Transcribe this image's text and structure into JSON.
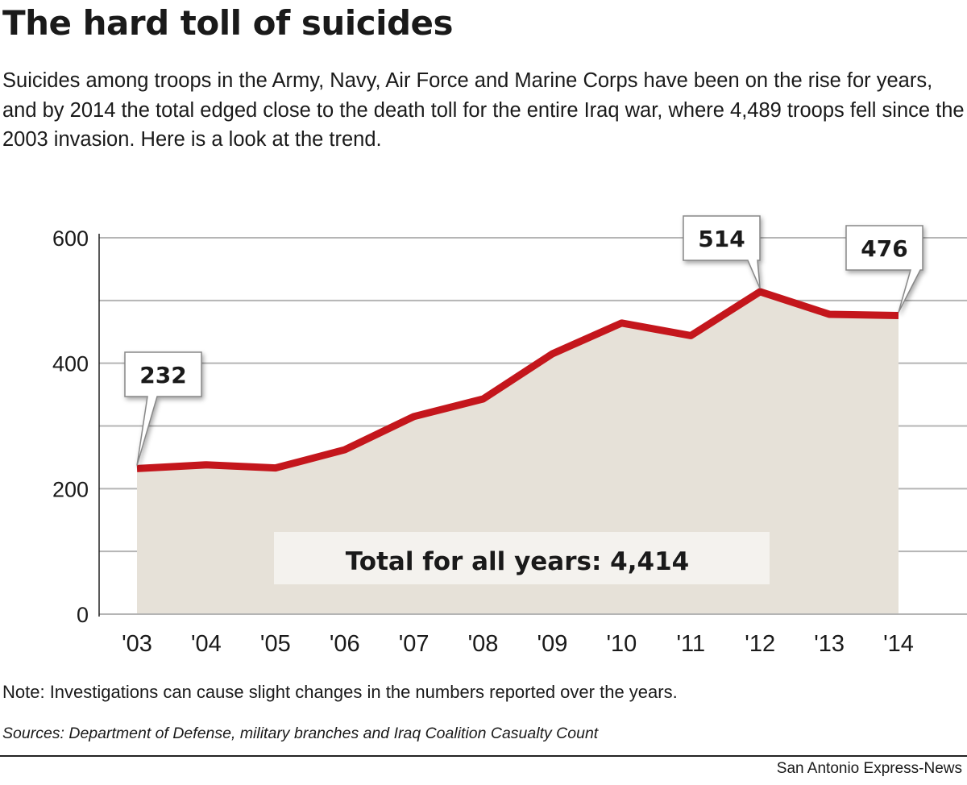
{
  "title": "The hard toll of suicides",
  "subtitle": "Suicides among troops in the Army, Navy, Air Force and Marine Corps have been on the rise for years, and by 2014 the total edged close to the death toll for the entire Iraq war, where 4,489 troops fell since the 2003 invasion. Here is a look at the trend.",
  "note": "Note: Investigations can cause slight changes in the numbers reported over the years.",
  "sources": "Sources: Department of Defense, military branches and Iraq Coalition Casualty Count",
  "credit": "San Antonio Express-News",
  "chart_data": {
    "type": "area",
    "categories": [
      "'03",
      "'04",
      "'05",
      "'06",
      "'07",
      "'08",
      "'09",
      "'10",
      "'11",
      "'12",
      "'13",
      "'14"
    ],
    "values": [
      232,
      238,
      233,
      262,
      315,
      343,
      415,
      464,
      444,
      514,
      478,
      476
    ],
    "yticks": [
      0,
      200,
      400,
      600
    ],
    "ylim": [
      0,
      600
    ],
    "grid": true,
    "callouts": [
      {
        "index": 0,
        "label": "232"
      },
      {
        "index": 9,
        "label": "514"
      },
      {
        "index": 11,
        "label": "476"
      }
    ],
    "annotation": "Total for all years: 4,414",
    "colors": {
      "line": "#c4161c",
      "fill": "#e6e1d8",
      "grid": "#b5b5b5"
    }
  }
}
